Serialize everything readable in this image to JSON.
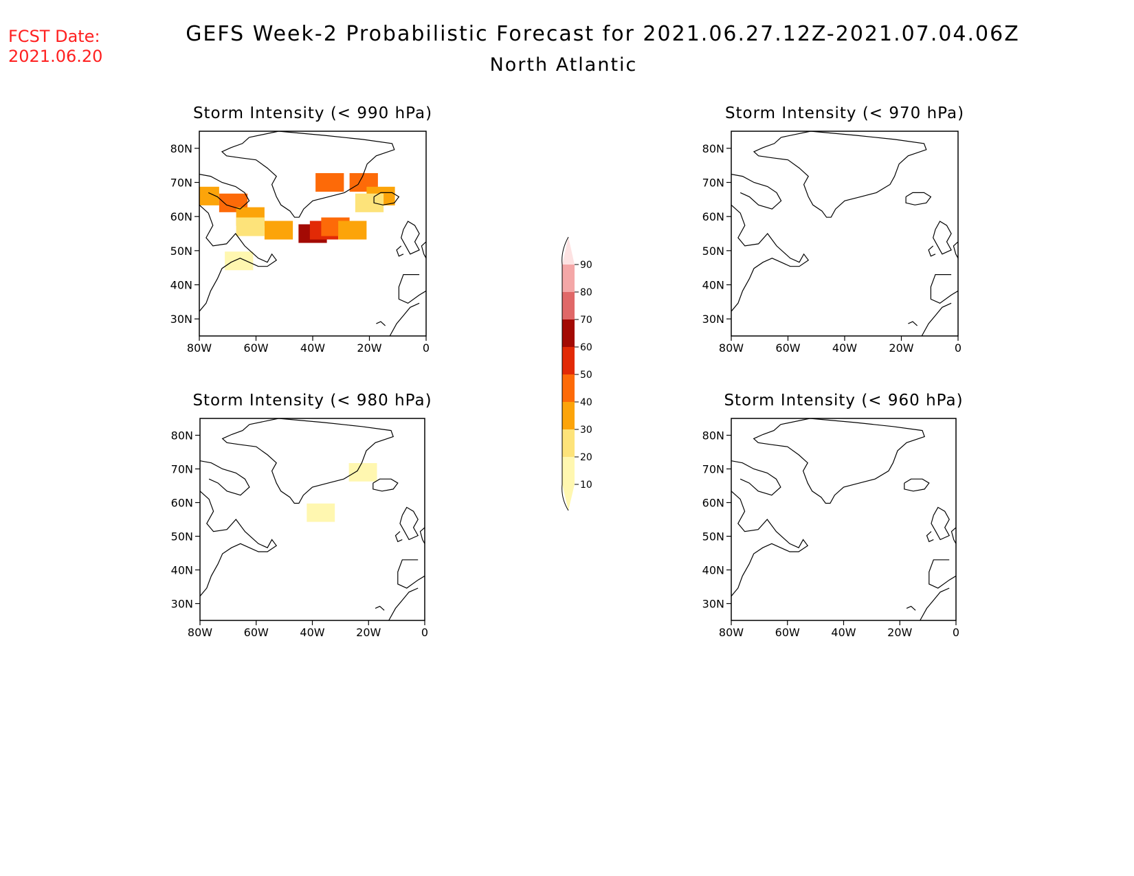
{
  "header": {
    "fcst_label": "FCST Date:",
    "fcst_date": "2021.06.20",
    "title": "GEFS Week-2 Probabilistic Forecast for 2021.06.27.12Z-2021.07.04.06Z",
    "subtitle": "North Atlantic"
  },
  "colors": {
    "fcst": "#ff2020",
    "bins": [
      "#fff7b0",
      "#fde37a",
      "#fca40a",
      "#fd6a08",
      "#e22a06",
      "#a30a04",
      "#e06868",
      "#f4a7a7",
      "#fde2e2"
    ]
  },
  "legend": {
    "levels": [
      "10",
      "20",
      "30",
      "40",
      "50",
      "60",
      "70",
      "80",
      "90"
    ]
  },
  "axes": {
    "lon_ticks": [
      "80W",
      "60W",
      "40W",
      "20W",
      "0"
    ],
    "lat_ticks": [
      "80N",
      "70N",
      "60N",
      "50N",
      "40N",
      "30N"
    ],
    "lon_range": [
      -80,
      0
    ],
    "lat_range": [
      25,
      85
    ]
  },
  "panels": [
    {
      "title": "Storm Intensity (< 990 hPa)",
      "cells": [
        {
          "lon": -78,
          "lat": 66,
          "bin": 2
        },
        {
          "lon": -68,
          "lat": 64,
          "bin": 3
        },
        {
          "lon": -62,
          "lat": 60,
          "bin": 2
        },
        {
          "lon": -52,
          "lat": 56,
          "bin": 2
        },
        {
          "lon": -40,
          "lat": 55,
          "bin": 5
        },
        {
          "lon": -36,
          "lat": 56,
          "bin": 4
        },
        {
          "lon": -32,
          "lat": 57,
          "bin": 3
        },
        {
          "lon": -26,
          "lat": 56,
          "bin": 2
        },
        {
          "lon": -34,
          "lat": 70,
          "bin": 3
        },
        {
          "lon": -22,
          "lat": 70,
          "bin": 3
        },
        {
          "lon": -16,
          "lat": 66,
          "bin": 2
        },
        {
          "lon": -20,
          "lat": 64,
          "bin": 1
        },
        {
          "lon": -62,
          "lat": 57,
          "bin": 1
        },
        {
          "lon": -66,
          "lat": 47,
          "bin": 0
        }
      ]
    },
    {
      "title": "Storm Intensity (< 970 hPa)",
      "cells": []
    },
    {
      "title": "Storm Intensity (< 980 hPa)",
      "cells": [
        {
          "lon": -22,
          "lat": 69,
          "bin": 0
        },
        {
          "lon": -37,
          "lat": 57,
          "bin": 0
        }
      ]
    },
    {
      "title": "Storm Intensity (< 960 hPa)",
      "cells": []
    }
  ]
}
